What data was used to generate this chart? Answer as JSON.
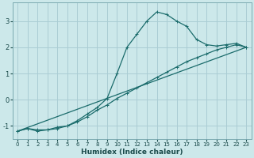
{
  "xlabel": "Humidex (Indice chaleur)",
  "ylabel": "",
  "bg_color": "#cce8ea",
  "grid_color": "#aacdd4",
  "line_color": "#1a6b6b",
  "xlim": [
    -0.5,
    23.5
  ],
  "ylim": [
    -1.5,
    3.7
  ],
  "yticks": [
    -1,
    0,
    1,
    2,
    3
  ],
  "xticks": [
    0,
    1,
    2,
    3,
    4,
    5,
    6,
    7,
    8,
    9,
    10,
    11,
    12,
    13,
    14,
    15,
    16,
    17,
    18,
    19,
    20,
    21,
    22,
    23
  ],
  "line1_x": [
    0,
    1,
    2,
    3,
    4,
    5,
    6,
    7,
    8,
    9,
    10,
    11,
    12,
    13,
    14,
    15,
    16,
    17,
    18,
    19,
    20,
    21,
    22,
    23
  ],
  "line1_y": [
    -1.2,
    -1.1,
    -1.15,
    -1.15,
    -1.05,
    -1.0,
    -0.8,
    -0.55,
    -0.3,
    0.05,
    1.0,
    2.0,
    2.5,
    3.0,
    3.35,
    3.25,
    3.0,
    2.8,
    2.3,
    2.1,
    2.05,
    2.1,
    2.15,
    2.0
  ],
  "line2_x": [
    0,
    1,
    2,
    3,
    4,
    5,
    6,
    7,
    8,
    9,
    10,
    11,
    12,
    13,
    14,
    15,
    16,
    17,
    18,
    19,
    20,
    21,
    22,
    23
  ],
  "line2_y": [
    -1.2,
    -1.1,
    -1.2,
    -1.15,
    -1.1,
    -1.0,
    -0.85,
    -0.65,
    -0.4,
    -0.2,
    0.05,
    0.25,
    0.45,
    0.65,
    0.85,
    1.05,
    1.25,
    1.45,
    1.6,
    1.75,
    1.9,
    2.0,
    2.1,
    2.0
  ],
  "line3_x": [
    0,
    23
  ],
  "line3_y": [
    -1.2,
    2.0
  ]
}
